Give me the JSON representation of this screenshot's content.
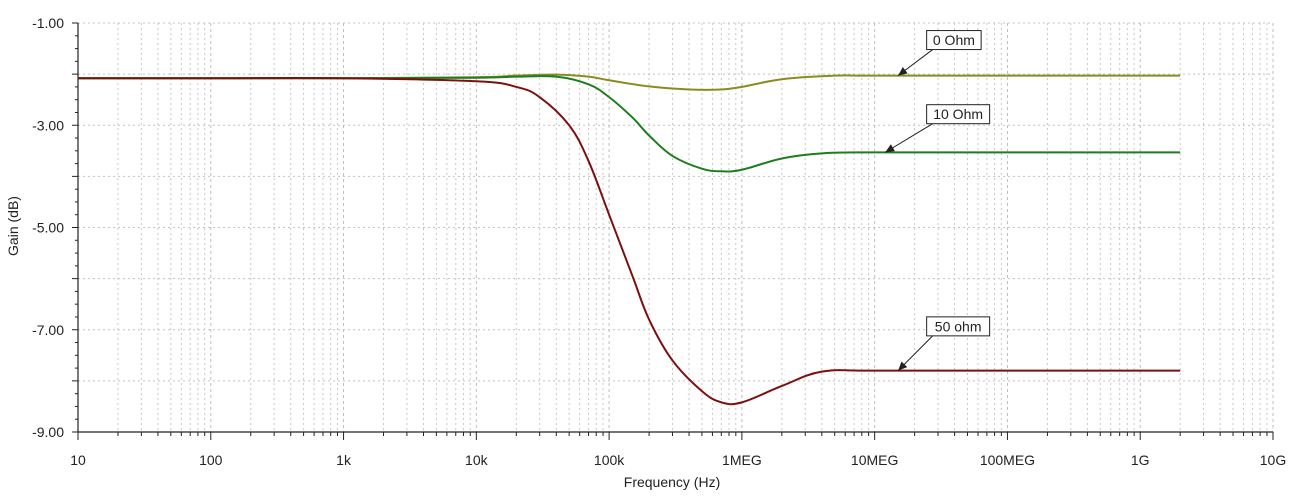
{
  "chart_data": {
    "type": "line",
    "xscale": "log",
    "xlim": [
      10,
      10000000000
    ],
    "ylim": [
      -9,
      -1
    ],
    "xlabel": "Frequency (Hz)",
    "ylabel": "Gain (dB)",
    "grid": true,
    "x_ticks": [
      {
        "value": 10,
        "label": "10"
      },
      {
        "value": 100,
        "label": "100"
      },
      {
        "value": 1000,
        "label": "1k"
      },
      {
        "value": 10000,
        "label": "10k"
      },
      {
        "value": 100000,
        "label": "100k"
      },
      {
        "value": 1000000,
        "label": "1MEG"
      },
      {
        "value": 10000000,
        "label": "10MEG"
      },
      {
        "value": 100000000,
        "label": "100MEG"
      },
      {
        "value": 1000000000,
        "label": "1G"
      },
      {
        "value": 10000000000,
        "label": "10G"
      }
    ],
    "y_ticks": [
      {
        "value": -1,
        "label": "-1.00"
      },
      {
        "value": -3,
        "label": "-3.00"
      },
      {
        "value": -5,
        "label": "-5.00"
      },
      {
        "value": -7,
        "label": "-7.00"
      },
      {
        "value": -9,
        "label": "-9.00"
      }
    ],
    "series": [
      {
        "name": "0 Ohm",
        "color": "#8b8b1e",
        "x": [
          10,
          100,
          1000,
          10000,
          20000,
          40000,
          70000,
          100000,
          200000,
          400000,
          700000,
          1000000,
          2000000,
          5000000,
          10000000,
          100000000,
          2000000000
        ],
        "y": [
          -2.08,
          -2.08,
          -2.08,
          -2.06,
          -2.03,
          -2.01,
          -2.05,
          -2.12,
          -2.24,
          -2.3,
          -2.3,
          -2.25,
          -2.1,
          -2.03,
          -2.03,
          -2.03,
          -2.03
        ]
      },
      {
        "name": "10 Ohm",
        "color": "#1e7d1e",
        "x": [
          10,
          100,
          1000,
          10000,
          20000,
          40000,
          70000,
          100000,
          150000,
          200000,
          300000,
          500000,
          700000,
          1000000,
          2000000,
          4000000,
          10000000,
          100000000,
          2000000000
        ],
        "y": [
          -2.08,
          -2.08,
          -2.08,
          -2.07,
          -2.05,
          -2.05,
          -2.2,
          -2.45,
          -2.85,
          -3.2,
          -3.6,
          -3.85,
          -3.9,
          -3.87,
          -3.65,
          -3.55,
          -3.53,
          -3.53,
          -3.53
        ]
      },
      {
        "name": "50 ohm",
        "color": "#7d0f0f",
        "x": [
          10,
          100,
          1000,
          10000,
          20000,
          30000,
          50000,
          70000,
          100000,
          150000,
          200000,
          300000,
          500000,
          700000,
          1000000,
          2000000,
          4000000,
          10000000,
          100000000,
          2000000000
        ],
        "y": [
          -2.08,
          -2.08,
          -2.08,
          -2.14,
          -2.25,
          -2.45,
          -3.0,
          -3.7,
          -4.75,
          -5.95,
          -6.8,
          -7.6,
          -8.2,
          -8.42,
          -8.42,
          -8.1,
          -7.82,
          -7.8,
          -7.8,
          -7.8
        ]
      }
    ],
    "annotations": [
      {
        "text": "0 Ohm",
        "x": 20000000,
        "y": -1.5,
        "arrow_x": 15000000,
        "arrow_y": -2.03,
        "series": 0
      },
      {
        "text": "10 Ohm",
        "x": 20000000,
        "y": -2.95,
        "arrow_x": 12000000,
        "arrow_y": -3.53,
        "series": 1
      },
      {
        "text": "50 ohm",
        "x": 20000000,
        "y": -7.1,
        "arrow_x": 15000000,
        "arrow_y": -7.8,
        "series": 2
      }
    ]
  }
}
